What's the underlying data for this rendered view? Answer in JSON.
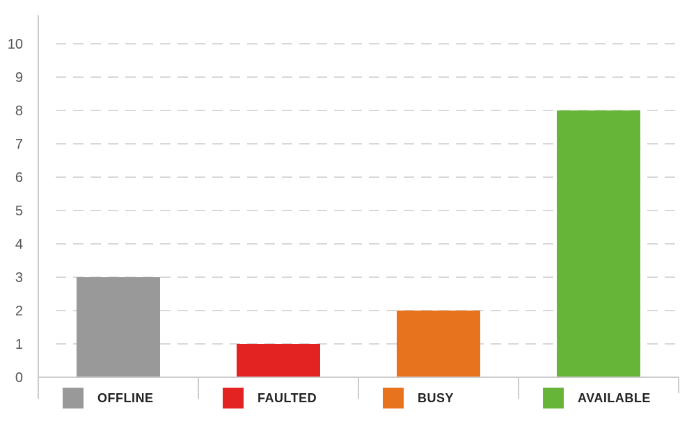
{
  "chart_data": {
    "type": "bar",
    "categories": [
      "OFFLINE",
      "FAULTED",
      "BUSY",
      "AVAILABLE"
    ],
    "values": [
      3,
      1,
      2,
      8
    ],
    "colors": [
      "#999999",
      "#e32322",
      "#e8731f",
      "#66b538"
    ],
    "yticks": [
      "0",
      "1",
      "2",
      "3",
      "4",
      "5",
      "6",
      "7",
      "8",
      "9",
      "10"
    ],
    "ylim": [
      0,
      10
    ],
    "grid": true,
    "grid_style": "dashed",
    "legend_placement": "bottom"
  }
}
